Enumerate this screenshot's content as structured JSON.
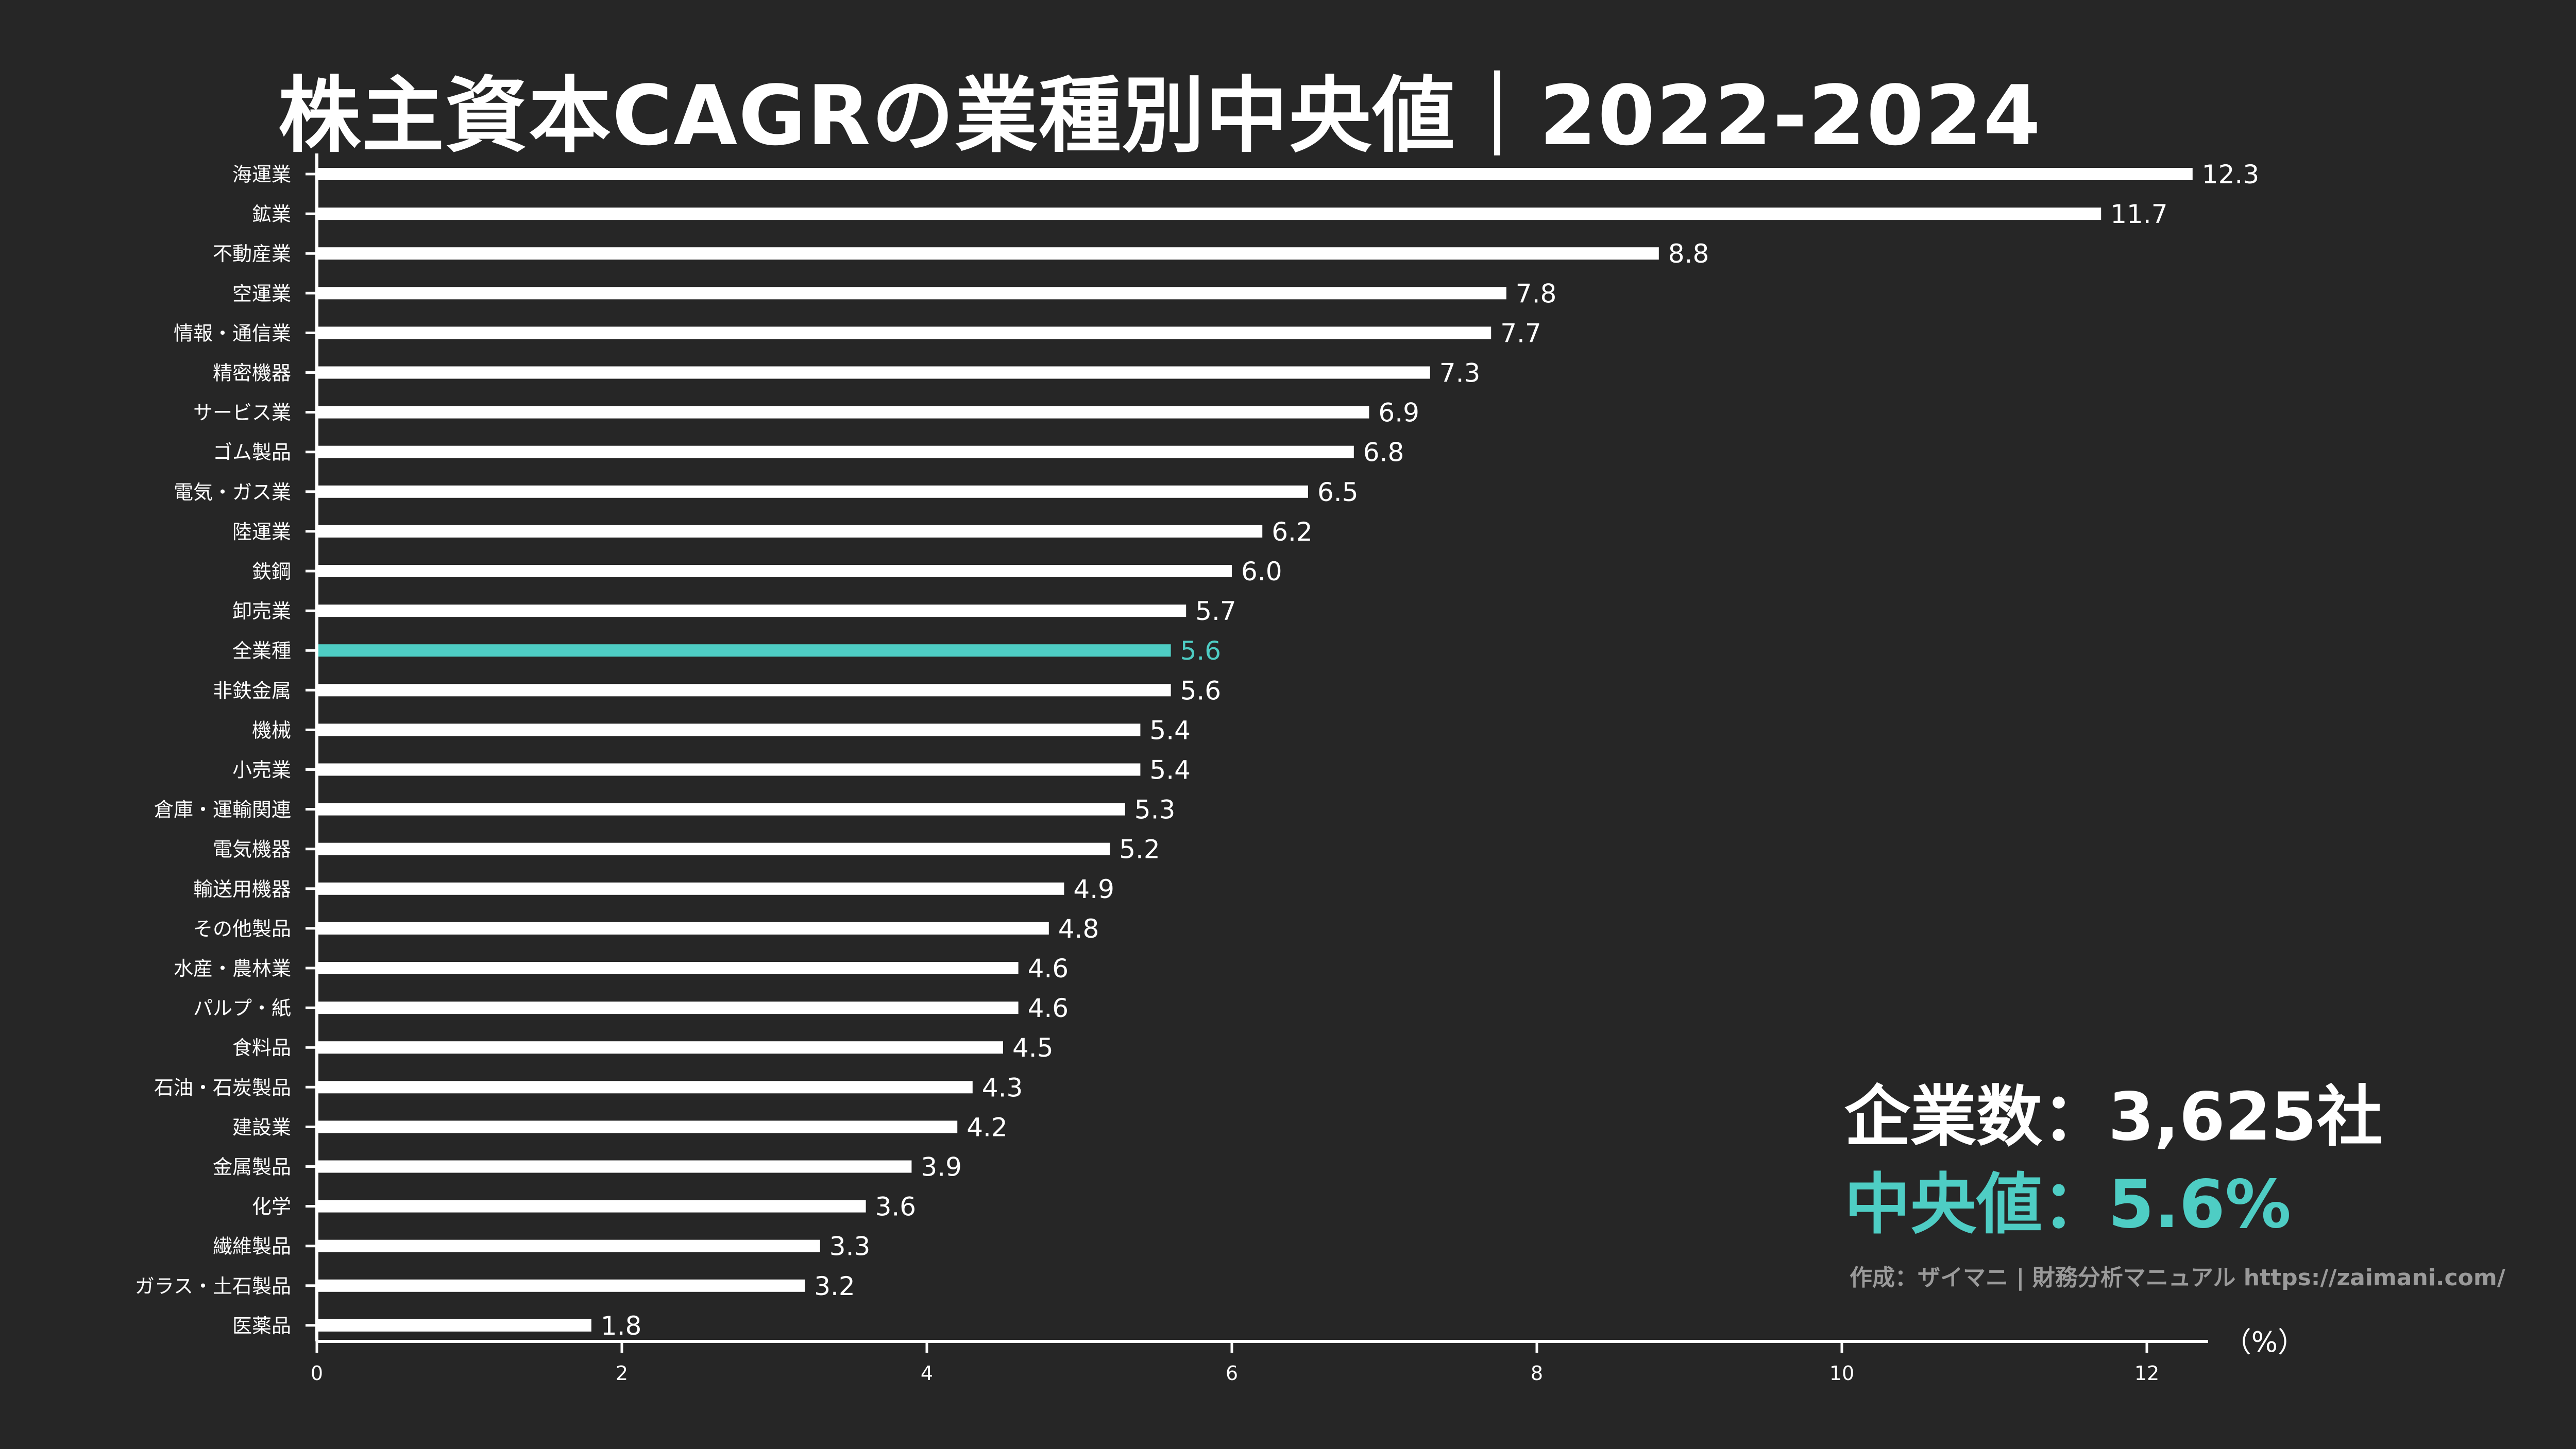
{
  "title": "株主資本CAGRの業種別中央値｜2022-2024",
  "stats": {
    "count": "企業数：3,625社",
    "median": "中央値：5.6%"
  },
  "credit": "作成：ザイマニ | 財務分析マニュアル https://zaimani.com/",
  "colors": {
    "background": "#262626",
    "bar": "#ffffff",
    "highlight": "#4ecdc4",
    "text": "#ffffff"
  },
  "chart_data": {
    "type": "bar",
    "orientation": "horizontal",
    "title": "株主資本CAGRの業種別中央値｜2022-2024",
    "xlabel": "（%）",
    "xlim": [
      0,
      12.3
    ],
    "xticks": [
      0,
      2,
      4,
      6,
      8,
      10,
      12
    ],
    "highlight": "全業種",
    "categories": [
      "海運業",
      "鉱業",
      "不動産業",
      "空運業",
      "情報・通信業",
      "精密機器",
      "サービス業",
      "ゴム製品",
      "電気・ガス業",
      "陸運業",
      "鉄鋼",
      "卸売業",
      "全業種",
      "非鉄金属",
      "機械",
      "小売業",
      "倉庫・運輸関連",
      "電気機器",
      "輸送用機器",
      "その他製品",
      "水産・農林業",
      "パルプ・紙",
      "食料品",
      "石油・石炭製品",
      "建設業",
      "金属製品",
      "化学",
      "繊維製品",
      "ガラス・土石製品",
      "医薬品"
    ],
    "values": [
      12.3,
      11.7,
      8.8,
      7.8,
      7.7,
      7.3,
      6.9,
      6.8,
      6.5,
      6.2,
      6.0,
      5.7,
      5.6,
      5.6,
      5.4,
      5.4,
      5.3,
      5.2,
      4.9,
      4.8,
      4.6,
      4.6,
      4.5,
      4.3,
      4.2,
      3.9,
      3.6,
      3.3,
      3.2,
      1.8
    ],
    "value_labels": [
      "12.3",
      "11.7",
      "8.8",
      "7.8",
      "7.7",
      "7.3",
      "6.9",
      "6.8",
      "6.5",
      "6.2",
      "6.0",
      "5.7",
      "5.6",
      "5.6",
      "5.4",
      "5.4",
      "5.3",
      "5.2",
      "4.9",
      "4.8",
      "4.6",
      "4.6",
      "4.5",
      "4.3",
      "4.2",
      "3.9",
      "3.6",
      "3.3",
      "3.2",
      "1.8"
    ]
  }
}
